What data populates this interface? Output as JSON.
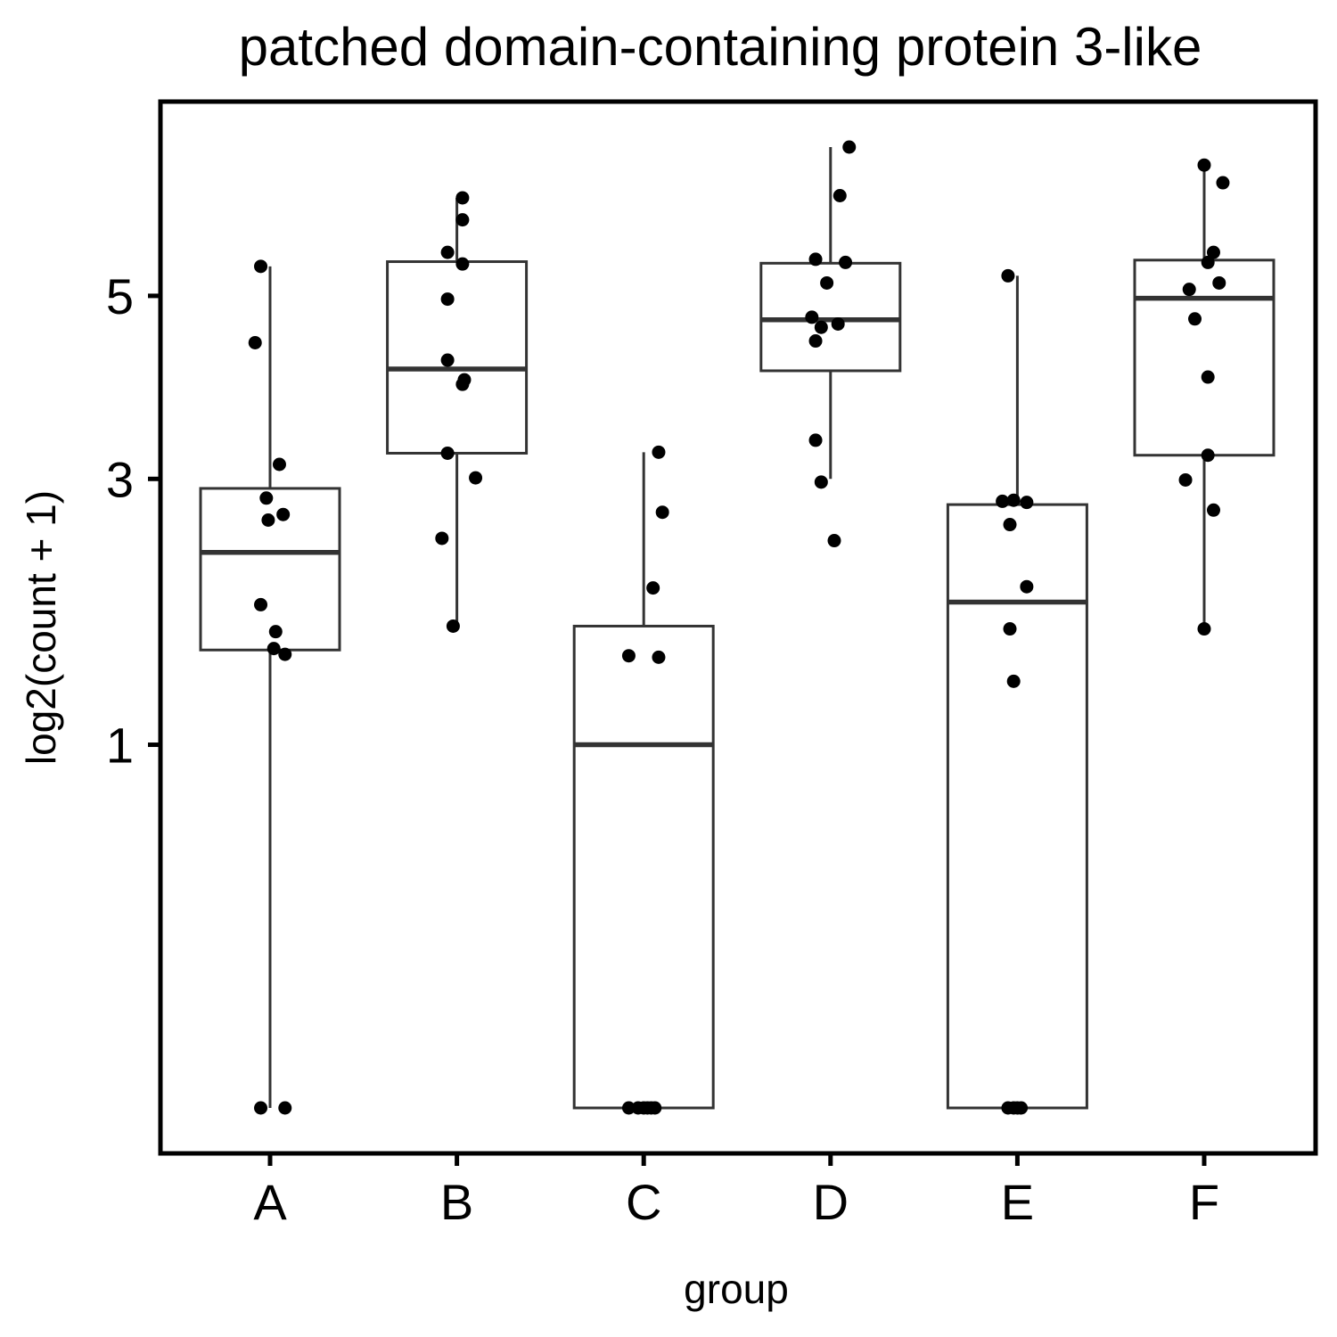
{
  "chart_data": {
    "type": "boxplot",
    "title": "patched domain-containing protein 3-like",
    "xlabel": "group",
    "ylabel": "log2(count + 1)",
    "scale": "sqrt",
    "y_ticks": [
      1,
      3,
      5
    ],
    "ylim": [
      0,
      7.2
    ],
    "grid": false,
    "colors": {
      "box_stroke": "#333333",
      "point": "#000000",
      "panel_border": "#000000"
    },
    "groups": [
      {
        "name": "A",
        "box": {
          "lower_whisker": 0,
          "q1": 1.59,
          "median": 2.34,
          "q3": 2.91,
          "upper_whisker": 5.37
        },
        "points": [
          [
            -0.05,
            5.37
          ],
          [
            -0.08,
            4.44
          ],
          [
            0.05,
            3.14
          ],
          [
            -0.02,
            2.82
          ],
          [
            0.07,
            2.67
          ],
          [
            -0.01,
            2.62
          ],
          [
            -0.05,
            1.92
          ],
          [
            0.03,
            1.72
          ],
          [
            0.02,
            1.6
          ],
          [
            0.08,
            1.56
          ],
          [
            -0.05,
            0
          ],
          [
            0.08,
            0
          ]
        ]
      },
      {
        "name": "B",
        "box": {
          "lower_whisker": 1.76,
          "q1": 3.25,
          "median": 4.14,
          "q3": 5.43,
          "upper_whisker": 6.28
        },
        "points": [
          [
            0.03,
            6.28
          ],
          [
            0.03,
            5.98
          ],
          [
            -0.05,
            5.55
          ],
          [
            0.03,
            5.4
          ],
          [
            -0.05,
            4.96
          ],
          [
            -0.05,
            4.24
          ],
          [
            0.04,
            4.02
          ],
          [
            0.03,
            3.97
          ],
          [
            -0.05,
            3.25
          ],
          [
            0.1,
            3.01
          ],
          [
            -0.08,
            2.46
          ],
          [
            -0.02,
            1.76
          ]
        ]
      },
      {
        "name": "C",
        "box": {
          "lower_whisker": 0,
          "q1": 0,
          "median": 1.0,
          "q3": 1.76,
          "upper_whisker": 3.26
        },
        "points": [
          [
            0.08,
            3.26
          ],
          [
            0.1,
            2.69
          ],
          [
            0.05,
            2.05
          ],
          [
            -0.08,
            1.55
          ],
          [
            0.08,
            1.54
          ],
          [
            -0.08,
            0
          ],
          [
            -0.03,
            0
          ],
          [
            0,
            0
          ],
          [
            0.02,
            0
          ],
          [
            0.04,
            0
          ],
          [
            0.06,
            0
          ]
        ]
      },
      {
        "name": "D",
        "box": {
          "lower_whisker": 3.0,
          "q1": 4.12,
          "median": 4.71,
          "q3": 5.41,
          "upper_whisker": 7.0
        },
        "points": [
          [
            0.1,
            7.0
          ],
          [
            0.05,
            6.31
          ],
          [
            -0.08,
            5.46
          ],
          [
            0.08,
            5.42
          ],
          [
            -0.02,
            5.16
          ],
          [
            -0.1,
            4.74
          ],
          [
            -0.05,
            4.62
          ],
          [
            0.04,
            4.66
          ],
          [
            -0.08,
            4.46
          ],
          [
            -0.08,
            3.38
          ],
          [
            -0.05,
            2.97
          ],
          [
            0.02,
            2.44
          ]
        ]
      },
      {
        "name": "E",
        "box": {
          "lower_whisker": 0,
          "q1": 0,
          "median": 1.94,
          "q3": 2.76,
          "upper_whisker": 5.25
        },
        "points": [
          [
            -0.05,
            5.25
          ],
          [
            -0.08,
            2.79
          ],
          [
            -0.02,
            2.8
          ],
          [
            0.05,
            2.78
          ],
          [
            -0.04,
            2.58
          ],
          [
            0.05,
            2.06
          ],
          [
            -0.04,
            1.74
          ],
          [
            -0.02,
            1.38
          ],
          [
            -0.05,
            0
          ],
          [
            -0.02,
            0
          ],
          [
            0,
            0
          ],
          [
            0.02,
            0
          ]
        ]
      },
      {
        "name": "F",
        "box": {
          "lower_whisker": 1.75,
          "q1": 3.23,
          "median": 4.97,
          "q3": 5.45,
          "upper_whisker": 6.74
        },
        "points": [
          [
            0.0,
            6.74
          ],
          [
            0.1,
            6.49
          ],
          [
            0.05,
            5.55
          ],
          [
            0.02,
            5.42
          ],
          [
            0.08,
            5.16
          ],
          [
            -0.08,
            5.08
          ],
          [
            -0.05,
            4.72
          ],
          [
            0.02,
            4.05
          ],
          [
            0.02,
            3.23
          ],
          [
            -0.1,
            2.99
          ],
          [
            0.05,
            2.71
          ],
          [
            0.0,
            1.74
          ]
        ]
      }
    ]
  }
}
